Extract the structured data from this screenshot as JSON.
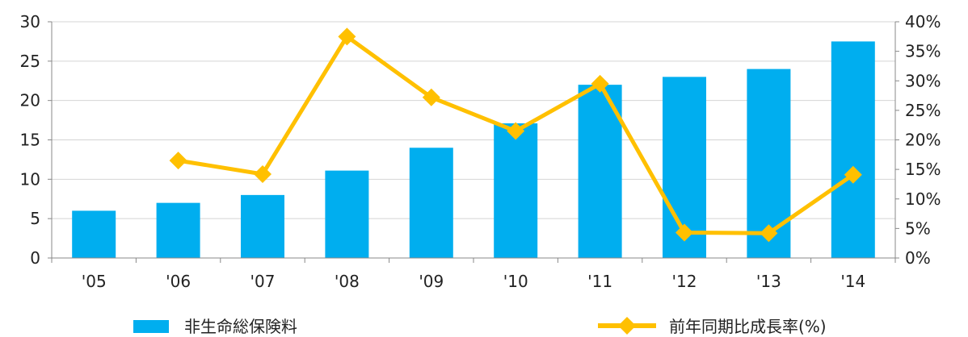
{
  "chart_data": {
    "type": "bar",
    "categories": [
      "'05",
      "'06",
      "'07",
      "'08",
      "'09",
      "'10",
      "'11",
      "'12",
      "'13",
      "'14"
    ],
    "series": [
      {
        "name": "非生命総保険料",
        "type": "bar",
        "axis": "left",
        "color": "#00AEEF",
        "values": [
          6.0,
          7.0,
          8.0,
          11.1,
          14.0,
          17.1,
          22.0,
          23.0,
          24.0,
          27.5
        ]
      },
      {
        "name": "前年同期比成長率(%)",
        "type": "line",
        "axis": "right",
        "color": "#FFC000",
        "values": [
          null,
          16.5,
          14.2,
          37.5,
          27.2,
          21.5,
          29.5,
          4.3,
          4.2,
          14.1
        ]
      }
    ],
    "y_left": {
      "ylim": [
        0,
        30
      ],
      "ticks": [
        0,
        5,
        10,
        15,
        20,
        25,
        30
      ],
      "tick_labels": [
        "0",
        "5",
        "10",
        "15",
        "20",
        "25",
        "30"
      ]
    },
    "y_right": {
      "ylim": [
        0,
        40
      ],
      "ticks": [
        0,
        5,
        10,
        15,
        20,
        25,
        30,
        35,
        40
      ],
      "tick_labels": [
        "0%",
        "5%",
        "10%",
        "15%",
        "20%",
        "25%",
        "30%",
        "35%",
        "40%"
      ]
    },
    "grid": true,
    "legend": "bottom"
  }
}
